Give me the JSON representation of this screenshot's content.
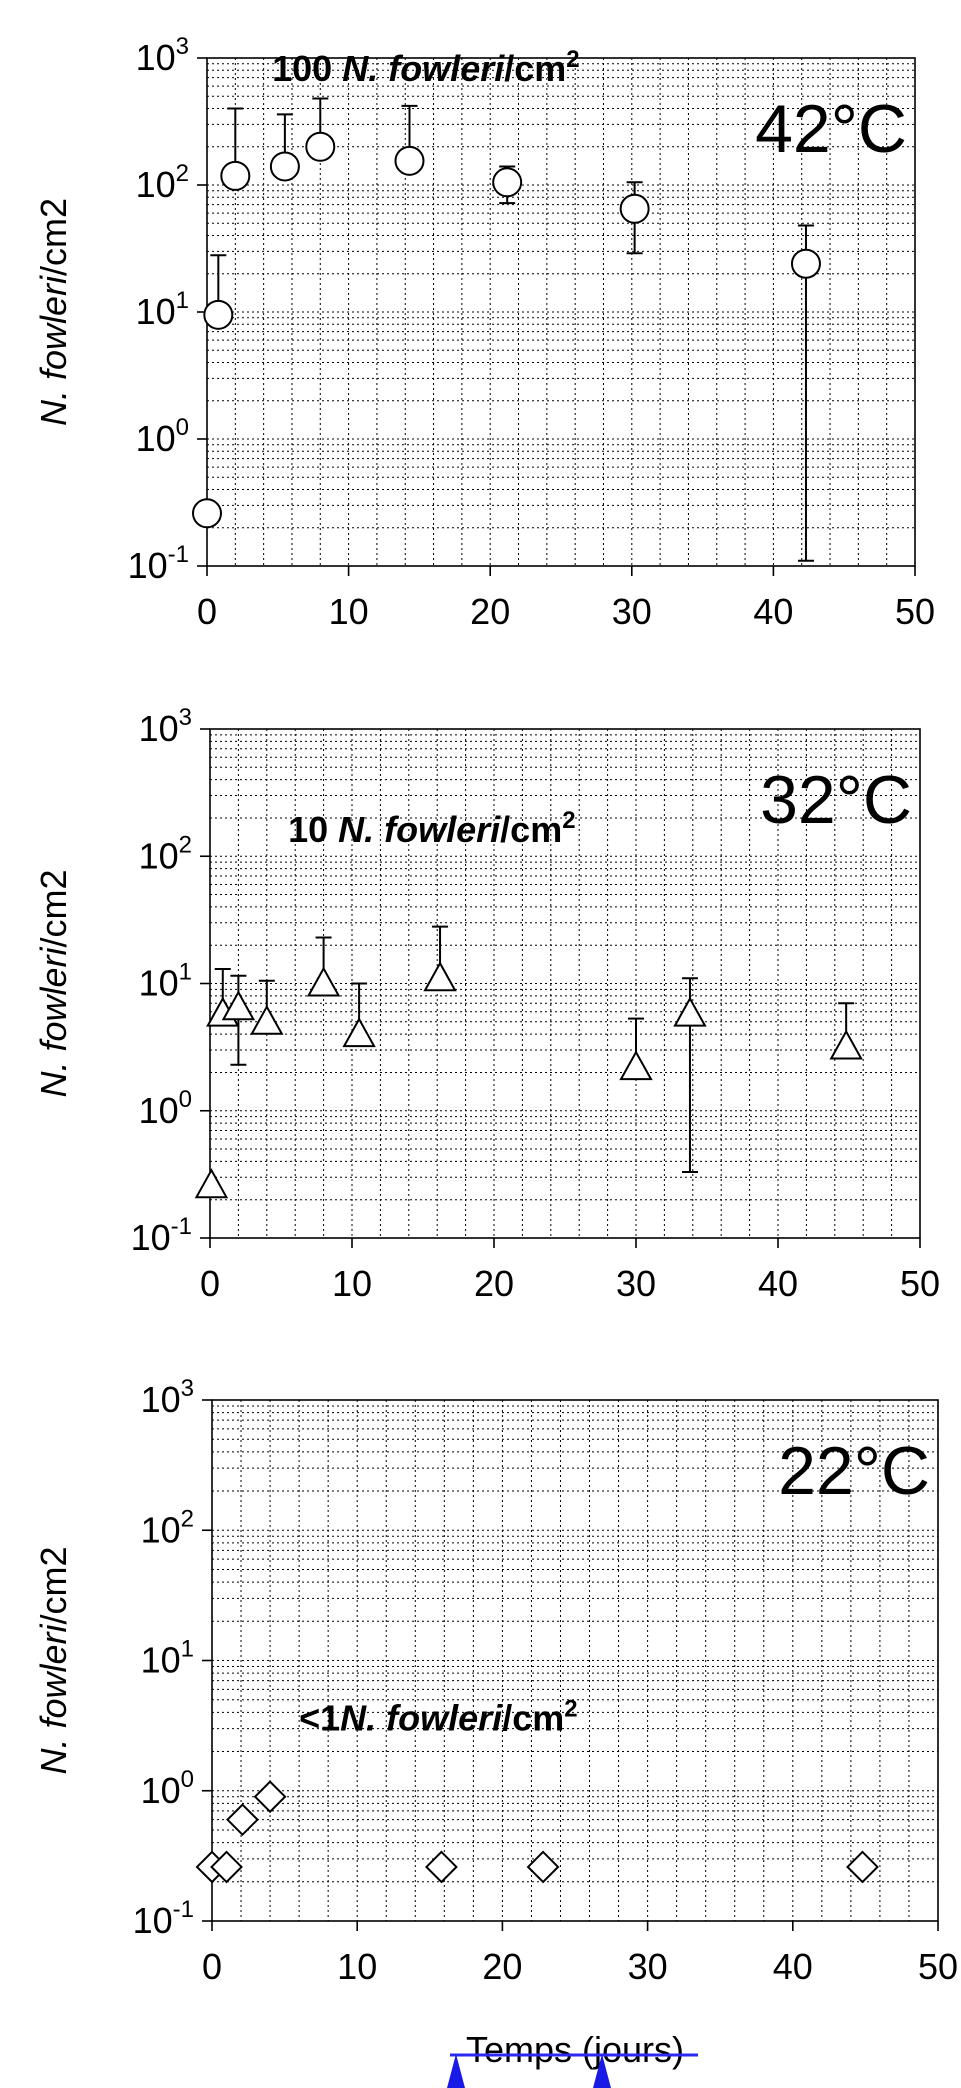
{
  "chart_data": [
    {
      "type": "scatter",
      "marker": "circle",
      "yscale": "log",
      "xlim": [
        0,
        50
      ],
      "ylim": [
        0.1,
        1000
      ],
      "grid": true,
      "x_ticks": [
        "0",
        "10",
        "20",
        "30",
        "40",
        "50"
      ],
      "y_ticks": [
        {
          "base": "10",
          "exp": "3"
        },
        {
          "base": "10",
          "exp": "2"
        },
        {
          "base": "10",
          "exp": "1"
        },
        {
          "base": "10",
          "exp": "0"
        },
        {
          "base": "10",
          "exp": "-1"
        }
      ],
      "ylabel_italic": "N. fowleri",
      "ylabel_rest": "/cm2",
      "temperature": "42°C",
      "annotation": {
        "prefix": "100 ",
        "italic": "N. fowleri",
        "suffix": "/cm",
        "sup": "2"
      },
      "points": [
        {
          "x": 0,
          "y": 0.26
        },
        {
          "x": 0.8,
          "y": 9.5,
          "err": 28
        },
        {
          "x": 2,
          "y": 118,
          "err": 400
        },
        {
          "x": 5.5,
          "y": 140,
          "err": 360
        },
        {
          "x": 8,
          "y": 200,
          "err": 480
        },
        {
          "x": 14.3,
          "y": 155,
          "err": 420
        },
        {
          "x": 21.2,
          "y": 105,
          "err_up": 140,
          "err_down": 72
        },
        {
          "x": 30.2,
          "y": 65,
          "err_up": 105,
          "err_down": 29
        },
        {
          "x": 42.3,
          "y": 24,
          "err_up": 48,
          "err_down": 0.11
        }
      ]
    },
    {
      "type": "scatter",
      "marker": "triangle",
      "yscale": "log",
      "xlim": [
        0,
        50
      ],
      "ylim": [
        0.1,
        1000
      ],
      "grid": true,
      "x_ticks": [
        "0",
        "10",
        "20",
        "30",
        "40",
        "50"
      ],
      "y_ticks": [
        {
          "base": "10",
          "exp": "3"
        },
        {
          "base": "10",
          "exp": "2"
        },
        {
          "base": "10",
          "exp": "1"
        },
        {
          "base": "10",
          "exp": "0"
        },
        {
          "base": "10",
          "exp": "-1"
        }
      ],
      "ylabel_italic": "N. fowleri",
      "ylabel_rest": "/cm2",
      "temperature": "32°C",
      "annotation": {
        "prefix": "10 ",
        "italic": "N. fowleri",
        "suffix": "/cm",
        "sup": "2"
      },
      "points": [
        {
          "x": 0.1,
          "y": 0.26
        },
        {
          "x": 0.9,
          "y": 5.8,
          "err": 13
        },
        {
          "x": 2,
          "y": 6.5,
          "err_up": 11.5,
          "err_down": 2.3
        },
        {
          "x": 4,
          "y": 5,
          "err": 10.5
        },
        {
          "x": 8,
          "y": 10,
          "err": 23
        },
        {
          "x": 10.5,
          "y": 4,
          "err": 10
        },
        {
          "x": 16.2,
          "y": 11,
          "err": 28
        },
        {
          "x": 30,
          "y": 2.2,
          "err": 5.3
        },
        {
          "x": 33.8,
          "y": 5.8,
          "err_up": 11,
          "err_down": 0.33
        },
        {
          "x": 44.8,
          "y": 3.2,
          "err": 7
        }
      ]
    },
    {
      "type": "scatter",
      "marker": "diamond",
      "yscale": "log",
      "xlim": [
        0,
        50
      ],
      "ylim": [
        0.1,
        1000
      ],
      "grid": true,
      "x_ticks": [
        "0",
        "10",
        "20",
        "30",
        "40",
        "50"
      ],
      "y_ticks": [
        {
          "base": "10",
          "exp": "3"
        },
        {
          "base": "10",
          "exp": "2"
        },
        {
          "base": "10",
          "exp": "1"
        },
        {
          "base": "10",
          "exp": "0"
        },
        {
          "base": "10",
          "exp": "-1"
        }
      ],
      "ylabel_italic": "N. fowleri",
      "ylabel_rest": "/cm2",
      "temperature": "22°C",
      "annotation": {
        "prefix": "<1",
        "italic": "N. fowleri",
        "suffix": "/cm",
        "sup": "2"
      },
      "xlabel": "Temps (jours)",
      "points": [
        {
          "x": 0,
          "y": 0.26
        },
        {
          "x": 1,
          "y": 0.26
        },
        {
          "x": 2.1,
          "y": 0.6
        },
        {
          "x": 4,
          "y": 0.9
        },
        {
          "x": 15.8,
          "y": 0.26
        },
        {
          "x": 22.8,
          "y": 0.26
        },
        {
          "x": 44.8,
          "y": 0.26
        }
      ]
    }
  ]
}
